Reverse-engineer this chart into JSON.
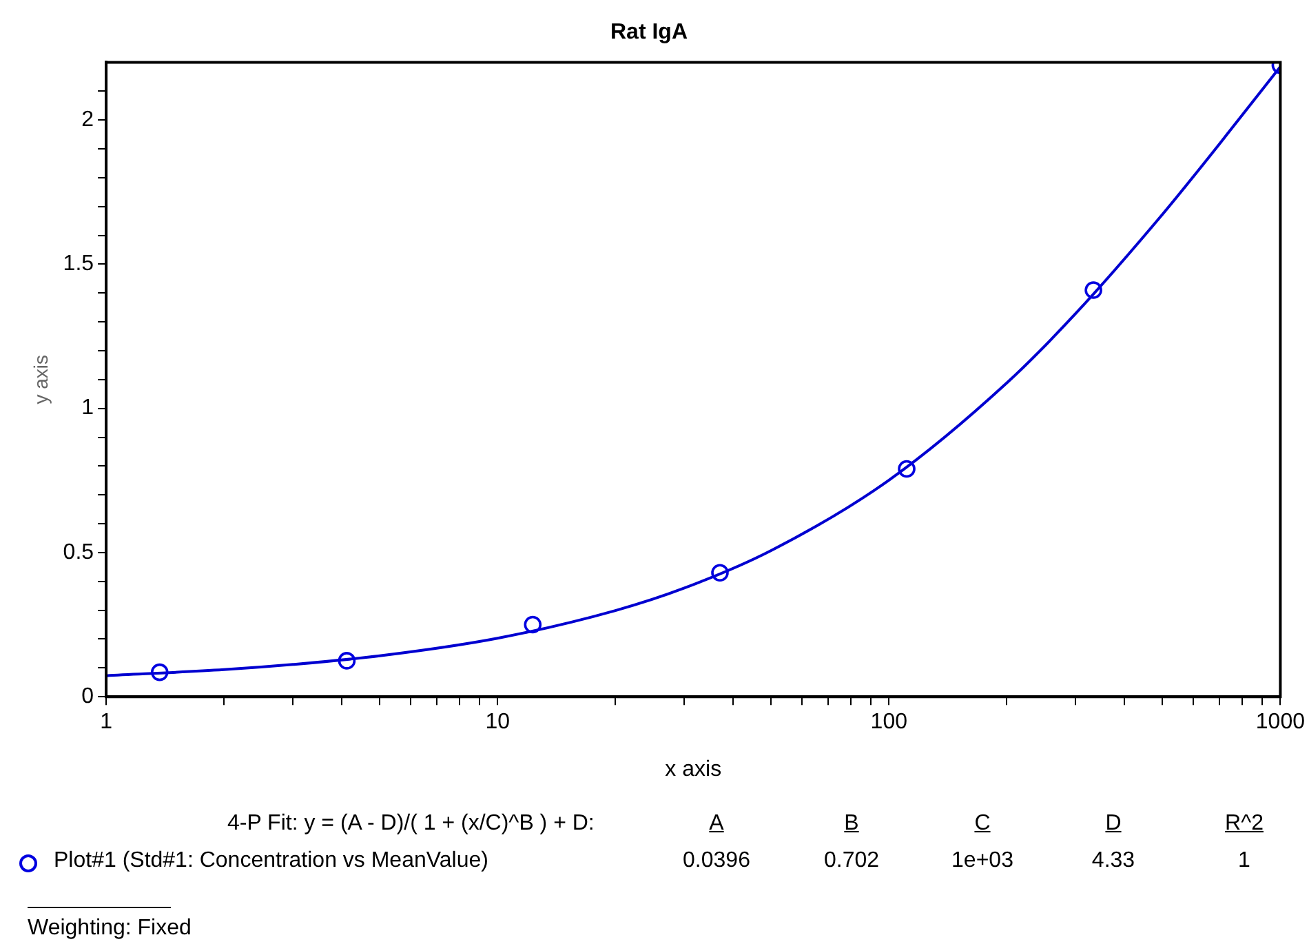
{
  "chart_data": {
    "type": "scatter",
    "title": "Rat IgA",
    "xlabel": "x axis",
    "ylabel": "y axis",
    "log": "x",
    "xlim": [
      1,
      1000
    ],
    "xticks": [
      1,
      {
        "value": 2,
        "label": null
      },
      {
        "value": 3,
        "label": null
      },
      {
        "value": 4,
        "label": null
      },
      {
        "value": 5,
        "label": null
      },
      {
        "value": 6,
        "label": null
      },
      {
        "value": 7,
        "label": null
      },
      {
        "value": 8,
        "label": null
      },
      {
        "value": 9,
        "label": null
      },
      10,
      {
        "value": 20,
        "label": null
      },
      {
        "value": 30,
        "label": null
      },
      {
        "value": 40,
        "label": null
      },
      {
        "value": 50,
        "label": null
      },
      {
        "value": 60,
        "label": null
      },
      {
        "value": 70,
        "label": null
      },
      {
        "value": 80,
        "label": null
      },
      {
        "value": 90,
        "label": null
      },
      100,
      {
        "value": 200,
        "label": null
      },
      {
        "value": 300,
        "label": null
      },
      {
        "value": 400,
        "label": null
      },
      {
        "value": 500,
        "label": null
      },
      {
        "value": 600,
        "label": null
      },
      {
        "value": 700,
        "label": null
      },
      {
        "value": 800,
        "label": null
      },
      {
        "value": 900,
        "label": null
      },
      1000
    ],
    "ylim": [
      0,
      2.2
    ],
    "yticks": [
      0,
      {
        "value": 0.1,
        "label": null
      },
      {
        "value": 0.2,
        "label": null
      },
      {
        "value": 0.3,
        "label": null
      },
      {
        "value": 0.4,
        "label": null
      },
      0.5,
      {
        "value": 0.6,
        "label": null
      },
      {
        "value": 0.7,
        "label": null
      },
      {
        "value": 0.8,
        "label": null
      },
      {
        "value": 0.9,
        "label": null
      },
      1,
      {
        "value": 1.1,
        "label": null
      },
      {
        "value": 1.2,
        "label": null
      },
      {
        "value": 1.3,
        "label": null
      },
      {
        "value": 1.4,
        "label": null
      },
      1.5,
      {
        "value": 1.6,
        "label": null
      },
      {
        "value": 1.7,
        "label": null
      },
      {
        "value": 1.8,
        "label": null
      },
      {
        "value": 1.9,
        "label": null
      },
      2,
      {
        "value": 2.1,
        "label": null
      }
    ],
    "grid": false,
    "legend": "bottom left",
    "marker": "circle",
    "series": [
      {
        "name": "Plot#1 (Std#1: Concentration vs MeanValue)",
        "color": "#0000e0",
        "x": [
          1.37,
          4.12,
          12.3,
          37,
          111,
          333,
          1000
        ],
        "values": [
          0.085,
          0.125,
          0.25,
          0.43,
          0.79,
          1.41,
          2.19
        ]
      },
      {
        "type": "line",
        "marker": "none",
        "color": "#0000d0",
        "x": [
          1,
          2,
          3,
          5,
          10,
          20,
          30,
          50,
          100,
          200,
          300,
          500,
          700,
          1000
        ],
        "values": [
          0.073,
          0.094,
          0.112,
          0.142,
          0.203,
          0.299,
          0.377,
          0.507,
          0.751,
          1.088,
          1.329,
          1.673,
          1.918,
          2.185
        ]
      }
    ],
    "annotations": [
      "4-P Fit: y = (A - D)/( 1 + (x/C)^B ) + D:",
      "A",
      "B",
      "C",
      "D",
      "R^2",
      "0.0396",
      "0.702",
      "1e+03",
      "4.33",
      "1",
      "Weighting: Fixed"
    ]
  }
}
